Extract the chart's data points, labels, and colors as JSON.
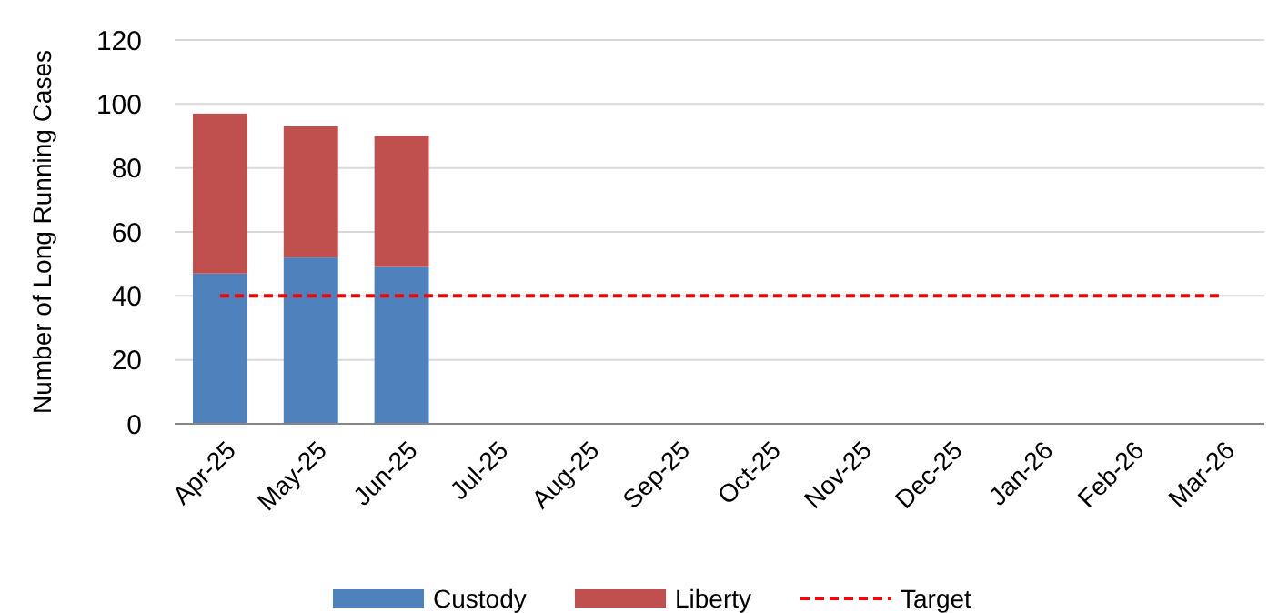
{
  "chart_data": {
    "type": "bar",
    "stacked": true,
    "ylabel": "Number of Long Running Cases",
    "categories": [
      "Apr-25",
      "May-25",
      "Jun-25",
      "Jul-25",
      "Aug-25",
      "Sep-25",
      "Oct-25",
      "Nov-25",
      "Dec-25",
      "Jan-26",
      "Feb-26",
      "Mar-26"
    ],
    "series": [
      {
        "name": "Custody",
        "color": "#4f81bd",
        "values": [
          47,
          52,
          49,
          null,
          null,
          null,
          null,
          null,
          null,
          null,
          null,
          null
        ]
      },
      {
        "name": "Liberty",
        "color": "#c0504d",
        "values": [
          50,
          41,
          41,
          null,
          null,
          null,
          null,
          null,
          null,
          null,
          null,
          null
        ]
      },
      {
        "name": "Target",
        "type": "line",
        "color": "#ff0000",
        "line_style": "dashed",
        "marker": "none",
        "values": [
          40,
          40,
          40,
          40,
          40,
          40,
          40,
          40,
          40,
          40,
          40,
          40
        ]
      }
    ],
    "ylim": [
      0,
      120
    ],
    "yticks": [
      0,
      20,
      40,
      60,
      80,
      100,
      120
    ],
    "grid": "y",
    "legend": "bottom"
  }
}
